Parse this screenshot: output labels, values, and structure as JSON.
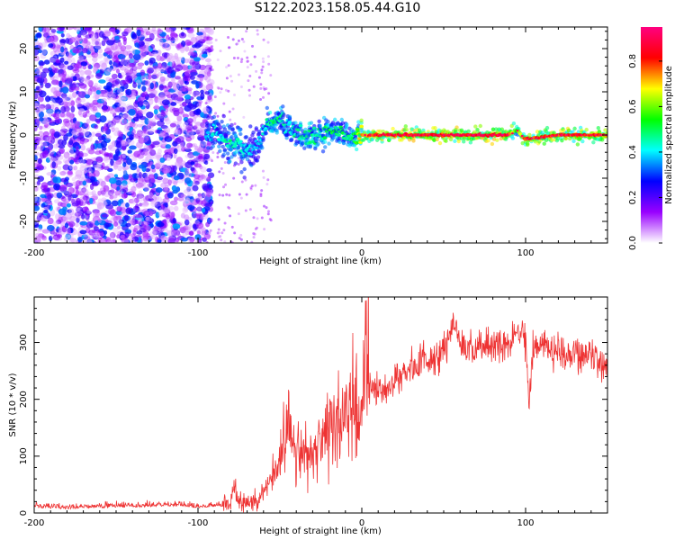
{
  "title": "S122.2023.158.05.44.G10",
  "chart_data": [
    {
      "type": "heatmap",
      "xlabel": "Height of straight line (km)",
      "ylabel": "Frequency (Hz)",
      "xlim": [
        -200,
        150
      ],
      "ylim": [
        -25,
        25
      ],
      "xticks": [
        -200,
        -100,
        0,
        100
      ],
      "xtick_labels": [
        "-200",
        "-100",
        "0",
        "100"
      ],
      "yticks": [
        -20,
        -10,
        0,
        10,
        20
      ],
      "ytick_labels": [
        "-20",
        "-10",
        "0",
        "10",
        "20"
      ],
      "colorbar": {
        "label": "Normalized spectral amplitude",
        "range": [
          0,
          0.95
        ],
        "ticks": [
          0,
          0.2,
          0.4,
          0.6,
          0.8
        ],
        "tick_labels": [
          "0.0",
          "0.2",
          "0.4",
          "0.6",
          "0.8"
        ],
        "colors": [
          "#ffffff",
          "#9900ff",
          "#0000ff",
          "#00ffff",
          "#00ff00",
          "#ffff00",
          "#ff0000",
          "#ff0080"
        ]
      },
      "regions": [
        {
          "x": [
            -200,
            -92
          ],
          "description_values": {
            "noise_amplitude": [
              0.05,
              0.35
            ]
          }
        },
        {
          "x": [
            -92,
            -65
          ],
          "freq_center_hz": [
            0.5,
            -3
          ],
          "amplitude": [
            0.3,
            0.6
          ]
        },
        {
          "x": [
            -55,
            0
          ],
          "freq_center_hz": [
            3,
            -1
          ],
          "amplitude": [
            0.3,
            0.55
          ]
        },
        {
          "x": [
            0,
            150
          ],
          "freq_center_hz": 0,
          "amplitude": [
            0.7,
            0.95
          ]
        }
      ],
      "ridge": {
        "x": [
          -95,
          -90,
          -85,
          -80,
          -75,
          -70,
          -65,
          -60,
          -55,
          -50,
          -45,
          -40,
          -35,
          -30,
          -25,
          -20,
          -15,
          -10,
          -5,
          0,
          10,
          30,
          50,
          70,
          90,
          95,
          100,
          120,
          150
        ],
        "y": [
          0.5,
          0,
          -1,
          -2,
          -2.5,
          -3,
          -3.5,
          1,
          3,
          3.5,
          2,
          1,
          0,
          -1,
          0,
          1,
          1.5,
          0,
          -1,
          0,
          0,
          0,
          0,
          0,
          0,
          1,
          -1,
          0,
          0
        ],
        "amplitude": [
          0.4,
          0.45,
          0.45,
          0.5,
          0.5,
          0.45,
          0.4,
          0.45,
          0.55,
          0.5,
          0.45,
          0.5,
          0.5,
          0.55,
          0.5,
          0.55,
          0.55,
          0.5,
          0.55,
          0.8,
          0.9,
          0.9,
          0.9,
          0.92,
          0.9,
          0.6,
          0.85,
          0.88,
          0.85
        ]
      }
    },
    {
      "type": "line",
      "xlabel": "Height of straight line (km)",
      "ylabel": "SNR (10 * v/v)",
      "xlim": [
        -200,
        150
      ],
      "ylim": [
        0,
        380
      ],
      "xticks": [
        -200,
        -100,
        0,
        100
      ],
      "xtick_labels": [
        "-200",
        "-100",
        "0",
        "100"
      ],
      "yticks": [
        0,
        100,
        200,
        300
      ],
      "ytick_labels": [
        "0",
        "100",
        "200",
        "300"
      ],
      "series": [
        {
          "color": "#ee3333",
          "x": [
            -200,
            -180,
            -160,
            -140,
            -120,
            -100,
            -90,
            -80,
            -78,
            -75,
            -70,
            -65,
            -60,
            -55,
            -50,
            -45,
            -40,
            -35,
            -30,
            -25,
            -20,
            -15,
            -10,
            -5,
            0,
            2,
            5,
            10,
            20,
            30,
            40,
            50,
            57,
            60,
            70,
            80,
            90,
            95,
            100,
            102,
            105,
            110,
            120,
            130,
            140,
            150
          ],
          "y": [
            12,
            10,
            12,
            13,
            15,
            12,
            14,
            15,
            50,
            20,
            18,
            20,
            40,
            60,
            100,
            150,
            120,
            110,
            100,
            120,
            150,
            160,
            180,
            190,
            180,
            300,
            220,
            210,
            235,
            255,
            270,
            285,
            340,
            295,
            290,
            300,
            295,
            320,
            310,
            200,
            300,
            295,
            285,
            280,
            275,
            265
          ]
        }
      ]
    }
  ]
}
